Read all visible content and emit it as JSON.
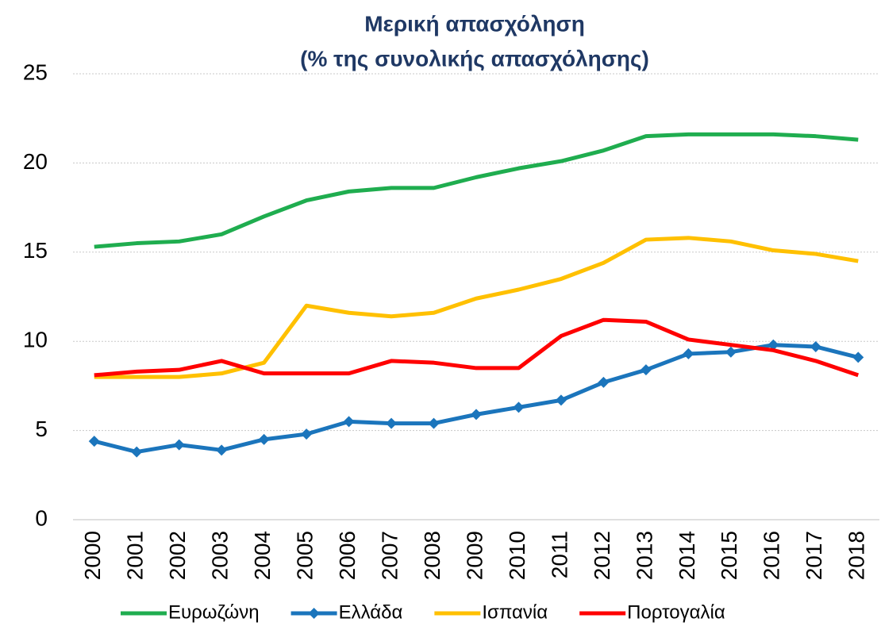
{
  "chart_data": {
    "type": "line",
    "title": "Μερική απασχόληση",
    "subtitle": "(% της συνολικής απασχόλησης)",
    "categories": [
      "2000",
      "2001",
      "2002",
      "2003",
      "2004",
      "2005",
      "2006",
      "2007",
      "2008",
      "2009",
      "2010",
      "2011",
      "2012",
      "2013",
      "2014",
      "2015",
      "2016",
      "2017",
      "2018"
    ],
    "series": [
      {
        "name": "Ευρωζώνη",
        "color": "#1fad4f",
        "values": [
          15.3,
          15.5,
          15.6,
          16.0,
          17.0,
          17.9,
          18.4,
          18.6,
          18.6,
          19.2,
          19.7,
          20.1,
          20.7,
          21.5,
          21.6,
          21.6,
          21.6,
          21.5,
          21.3
        ]
      },
      {
        "name": "Ελλάδα",
        "color": "#1b75bc",
        "marker": "diamond",
        "values": [
          4.4,
          3.8,
          4.2,
          3.9,
          4.5,
          4.8,
          5.5,
          5.4,
          5.4,
          5.9,
          6.3,
          6.7,
          7.7,
          8.4,
          9.3,
          9.4,
          9.8,
          9.7,
          9.1
        ]
      },
      {
        "name": "Ισπανία",
        "color": "#ffc000",
        "values": [
          8.0,
          8.0,
          8.0,
          8.2,
          8.8,
          12.0,
          11.6,
          11.4,
          11.6,
          12.4,
          12.9,
          13.5,
          14.4,
          15.7,
          15.8,
          15.6,
          15.1,
          14.9,
          14.5
        ]
      },
      {
        "name": "Πορτογαλία",
        "color": "#ff0000",
        "values": [
          8.1,
          8.3,
          8.4,
          8.9,
          8.2,
          8.2,
          8.2,
          8.9,
          8.8,
          8.5,
          8.5,
          10.3,
          11.2,
          11.1,
          10.1,
          9.8,
          9.5,
          8.9,
          8.1
        ]
      }
    ],
    "ylim": [
      0,
      25
    ],
    "yticks": [
      0,
      5,
      10,
      15,
      20,
      25
    ],
    "grid": true,
    "legend": "bottom"
  }
}
